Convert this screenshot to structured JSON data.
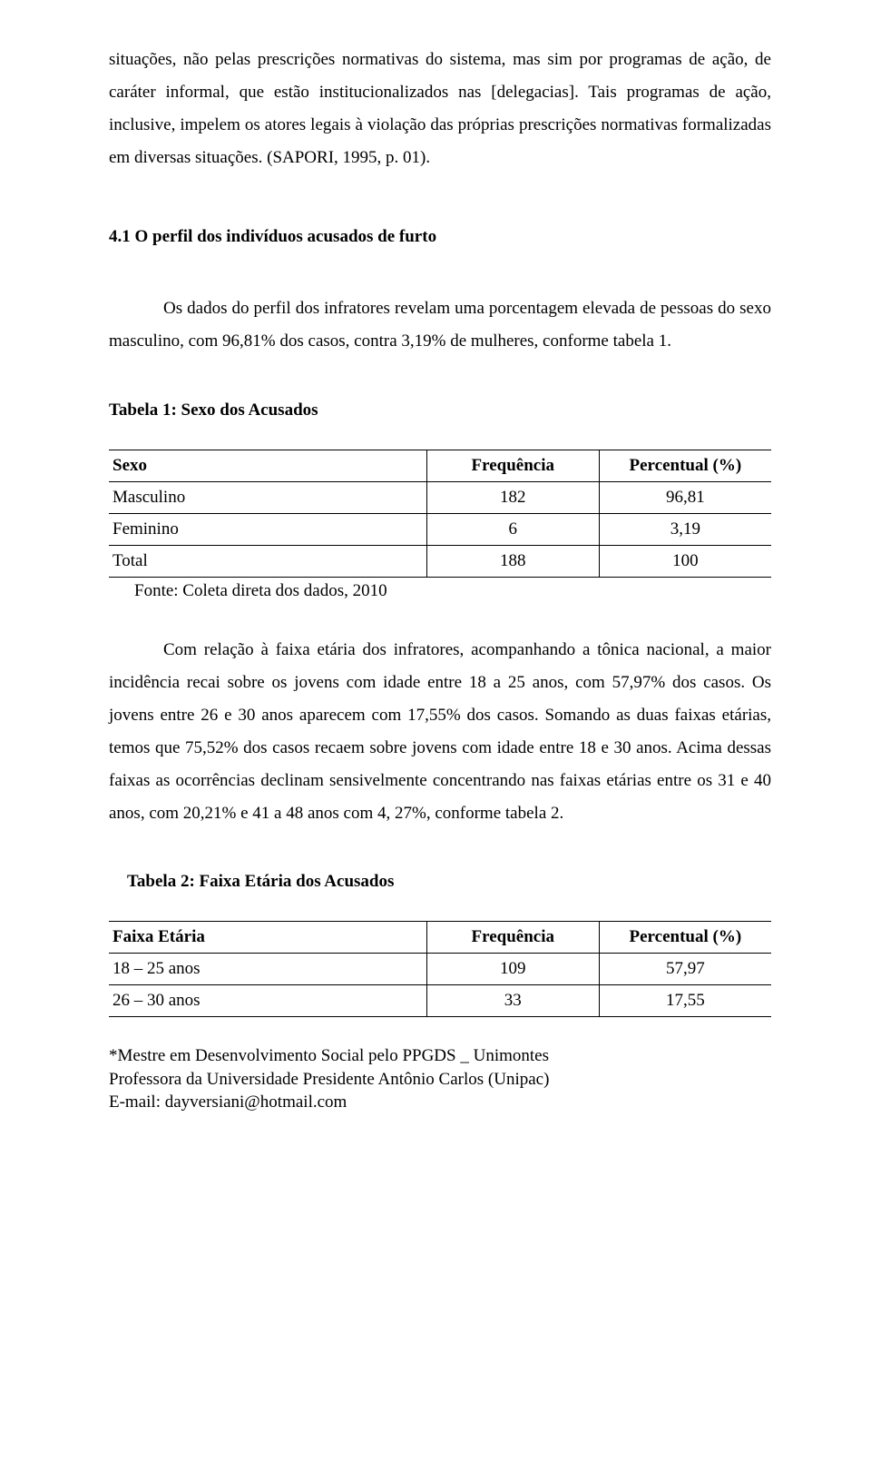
{
  "para1": "situações, não pelas prescrições normativas do sistema, mas sim por programas de ação, de caráter informal, que estão institucionalizados nas [delegacias]. Tais programas de ação, inclusive, impelem os atores legais à violação das próprias prescrições normativas formalizadas em diversas situações. (SAPORI, 1995, p. 01).",
  "section_heading": "4.1 O perfil dos indivíduos acusados de furto",
  "para2": "Os dados do perfil dos infratores revelam uma porcentagem elevada de pessoas do sexo masculino, com 96,81% dos casos, contra 3,19% de mulheres, conforme tabela 1.",
  "table1": {
    "caption": "Tabela 1: Sexo dos Acusados",
    "columns": [
      "Sexo",
      "Frequência",
      "Percentual (%)"
    ],
    "col_widths": [
      "48%",
      "26%",
      "26%"
    ],
    "rows": [
      [
        "Masculino",
        "182",
        "96,81"
      ],
      [
        "Feminino",
        "6",
        "3,19"
      ],
      [
        "Total",
        "188",
        "100"
      ]
    ],
    "source": "Fonte: Coleta direta dos dados, 2010"
  },
  "para3": "Com relação à faixa etária dos infratores, acompanhando a tônica nacional, a maior incidência recai sobre os jovens com idade entre 18 a 25 anos, com 57,97% dos casos. Os jovens entre 26 e 30 anos aparecem com 17,55% dos casos. Somando as duas faixas etárias, temos que 75,52% dos casos recaem sobre jovens com idade entre 18 e 30 anos. Acima dessas faixas as ocorrências declinam sensivelmente concentrando nas faixas etárias entre os 31 e 40 anos, com 20,21% e 41 a 48 anos com 4, 27%, conforme tabela 2.",
  "table2": {
    "caption": "Tabela 2: Faixa Etária dos Acusados",
    "columns": [
      "Faixa Etária",
      "Frequência",
      "Percentual (%)"
    ],
    "col_widths": [
      "48%",
      "26%",
      "26%"
    ],
    "rows": [
      [
        "18 – 25 anos",
        "109",
        "57,97"
      ],
      [
        "26 – 30 anos",
        "33",
        "17,55"
      ]
    ]
  },
  "footer": {
    "line1": "*Mestre em Desenvolvimento Social pelo PPGDS _ Unimontes",
    "line2": "Professora da Universidade Presidente Antônio Carlos (Unipac)",
    "line3": "E-mail: dayversiani@hotmail.com"
  }
}
